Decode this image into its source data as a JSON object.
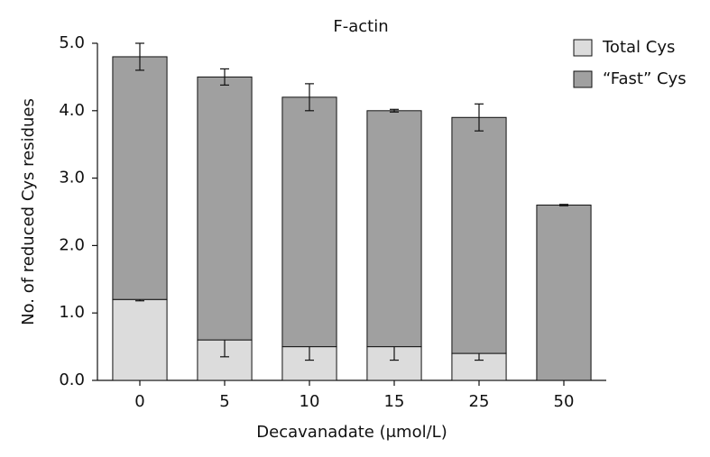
{
  "chart_data": {
    "type": "bar",
    "stacked": true,
    "title": "F-actin",
    "x_label": "Decavanadate (μmol/L)",
    "y_label": "No. of reduced Cys residues",
    "categories": [
      "0",
      "5",
      "10",
      "15",
      "25",
      "50"
    ],
    "series": [
      {
        "name": "Total Cys",
        "color": "#dcdcdc",
        "values": [
          1.2,
          0.6,
          0.5,
          0.5,
          0.4,
          0
        ],
        "errors": [
          0.02,
          0.25,
          0.2,
          0.2,
          0.1,
          0.3
        ]
      },
      {
        "name": "“Fast” Cys",
        "color": "#a0a0a0",
        "values": [
          3.6,
          3.9,
          3.7,
          3.5,
          3.5,
          2.6
        ],
        "errors": [
          0.2,
          0.12,
          0.2,
          0.02,
          0.2,
          0.01
        ]
      }
    ],
    "ylim": [
      0,
      5
    ],
    "yticks": [
      {
        "value": 0,
        "label": "0.0"
      },
      {
        "value": 1,
        "label": "1.0"
      },
      {
        "value": 2,
        "label": "2.0"
      },
      {
        "value": 3,
        "label": "3.0"
      },
      {
        "value": 4,
        "label": "4.0"
      },
      {
        "value": 5,
        "label": "5.0"
      }
    ],
    "legend": "upper right"
  }
}
